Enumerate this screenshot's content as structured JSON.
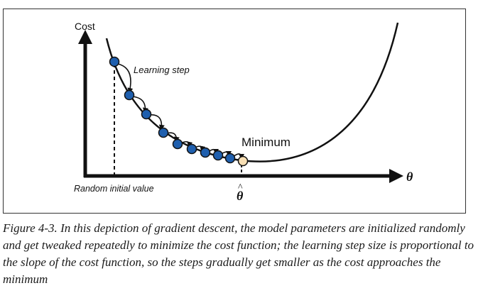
{
  "diagram": {
    "y_axis_label": "Cost",
    "x_axis_label": "θ",
    "learning_step_label": "Learning step",
    "minimum_label": "Minimum",
    "random_initial_label": "Random initial value",
    "theta_hat_label": "θ",
    "theta_hat_accent": "^",
    "colors": {
      "step_point": "#1f5fae",
      "minimum_point": "#f8dfb4",
      "ink": "#111111"
    }
  },
  "caption": {
    "figure_number": "Figure 4-3.",
    "text": "In this depiction of gradient descent, the model parameters are initialized randomly and get tweaked repeatedly to minimize the cost function; the learning step size is proportional to the slope of the cost function, so the steps gradually get smaller as the cost approaches the minimum"
  }
}
